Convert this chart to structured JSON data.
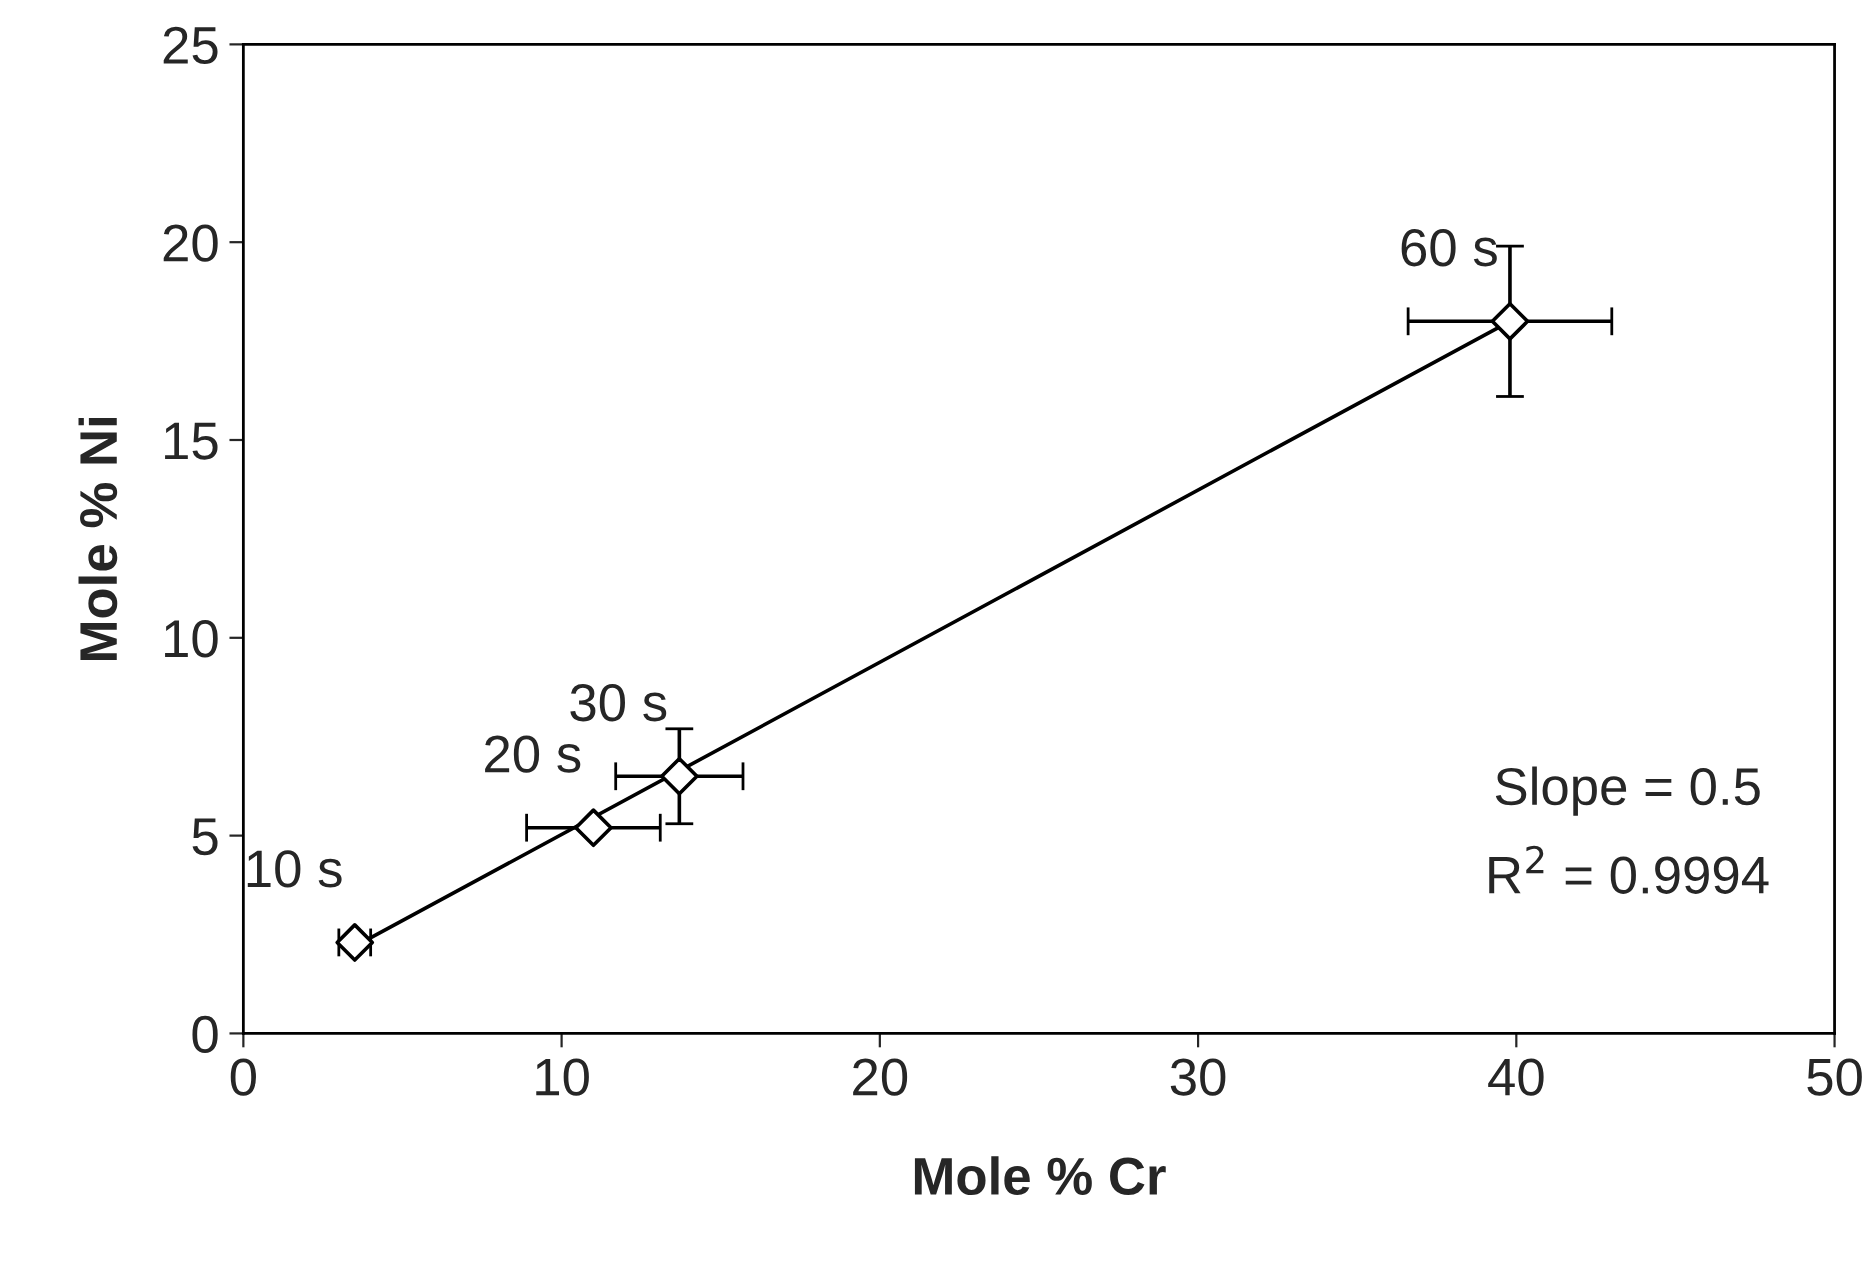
{
  "chart_data": {
    "type": "scatter",
    "xlabel": "Mole % Cr",
    "ylabel": "Mole % Ni",
    "xlim": [
      0,
      50
    ],
    "ylim": [
      0,
      25
    ],
    "xticks": [
      0,
      10,
      20,
      30,
      40,
      50
    ],
    "yticks": [
      0,
      5,
      10,
      15,
      20,
      25
    ],
    "grid": false,
    "legend": false,
    "series": [
      {
        "marker": "diamond",
        "color": "#000000",
        "x": [
          3.5,
          11.0,
          13.7,
          39.8
        ],
        "values": [
          2.3,
          5.2,
          6.5,
          18.0
        ],
        "errors": [
          null,
          null,
          1.2,
          1.9
        ],
        "xerrors": [
          0.5,
          2.1,
          2.0,
          3.2
        ]
      },
      {
        "type": "line",
        "marker": "none",
        "color": "#000000",
        "x": [
          3.5,
          39.8
        ],
        "values": [
          2.2,
          18.0
        ]
      }
    ],
    "annotations": [
      {
        "text": "10 s",
        "x": 3.5,
        "y": 2.3
      },
      {
        "text": "20 s",
        "x": 11.0,
        "y": 5.2
      },
      {
        "text": "30 s",
        "x": 13.7,
        "y": 6.5
      },
      {
        "text": "60 s",
        "x": 39.8,
        "y": 18.0
      },
      "Slope = 0.5",
      "R$^{2}$ = 0.9994"
    ]
  }
}
